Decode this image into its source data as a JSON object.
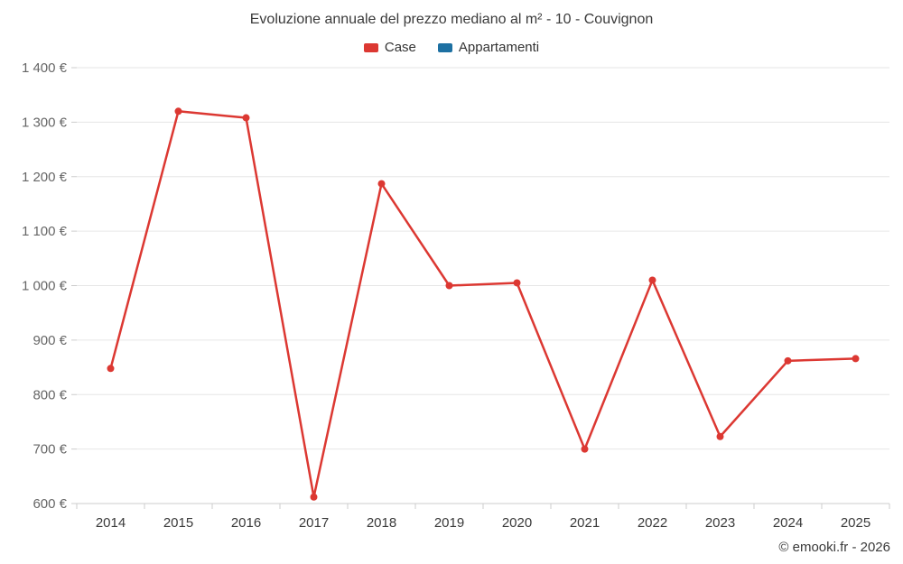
{
  "chart_data": {
    "type": "line",
    "title": "Evoluzione annuale del prezzo mediano al m² - 10 - Couvignon",
    "categories": [
      "2014",
      "2015",
      "2016",
      "2017",
      "2018",
      "2019",
      "2020",
      "2021",
      "2022",
      "2023",
      "2024",
      "2025"
    ],
    "series": [
      {
        "name": "Case",
        "color": "#dc3832",
        "values": [
          848,
          1320,
          1308,
          612,
          1187,
          1000,
          1005,
          700,
          1010,
          723,
          862,
          866
        ]
      },
      {
        "name": "Appartamenti",
        "color": "#1d70a2",
        "values": []
      }
    ],
    "ylim": [
      600,
      1400
    ],
    "ytick_step": 100,
    "ytick_suffix": "€",
    "grid": true,
    "legend_position": "top",
    "xlabel": "",
    "ylabel": ""
  },
  "footer": {
    "copyright": "© emooki.fr - 2026"
  }
}
